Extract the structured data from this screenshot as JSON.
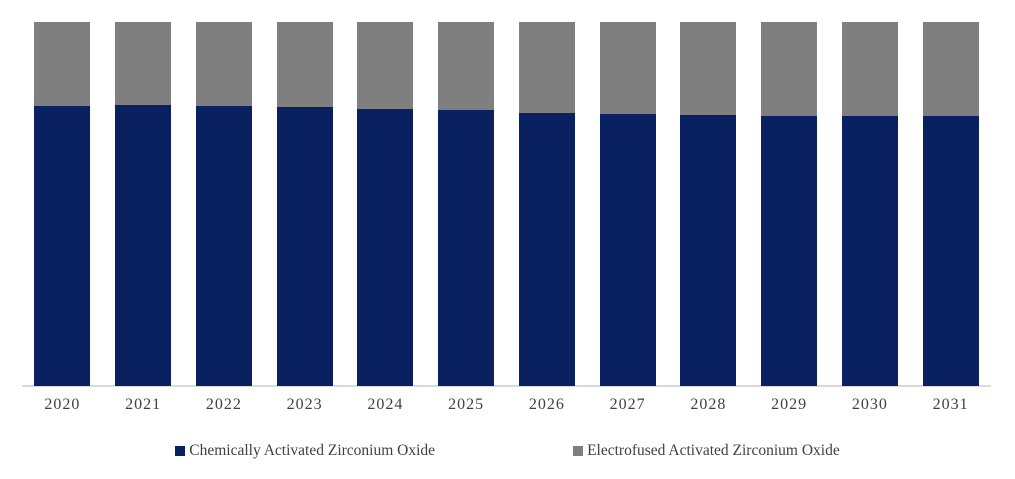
{
  "chart_data": {
    "type": "bar",
    "subtype": "stacked-100-percent",
    "categories": [
      "2020",
      "2021",
      "2022",
      "2023",
      "2024",
      "2025",
      "2026",
      "2027",
      "2028",
      "2029",
      "2030",
      "2031"
    ],
    "series": [
      {
        "name": "Chemically Activated Zirconium Oxide",
        "color": "#0A2161",
        "values": [
          76.9,
          77.2,
          76.9,
          76.6,
          76.0,
          75.8,
          75.0,
          74.7,
          74.5,
          74.3,
          74.3,
          74.3
        ]
      },
      {
        "name": "Electrofused Activated Zirconium Oxide",
        "color": "#7F7F7F",
        "values": [
          23.1,
          22.8,
          23.1,
          23.4,
          24.0,
          24.2,
          25.0,
          25.3,
          25.5,
          25.7,
          25.7,
          25.7
        ]
      }
    ],
    "value_unit": "percent_share",
    "ylim": [
      0,
      100
    ],
    "grid": false,
    "y_axis_visible": false,
    "legend_position": "bottom",
    "axis_line_color": "#D9D9D9",
    "label_color": "#404040",
    "background_color": "#FFFFFF"
  }
}
